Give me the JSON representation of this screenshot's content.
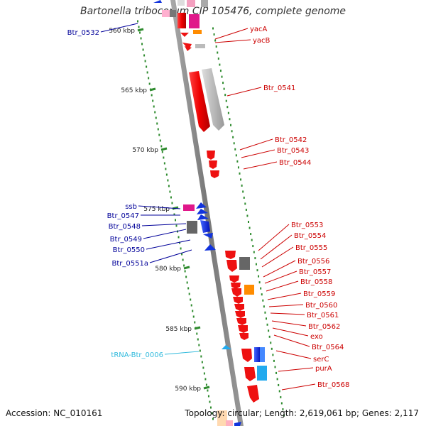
{
  "title": "Bartonella tribocorum CIP 105476, complete genome",
  "footer": {
    "accession": "Accession: NC_010161",
    "summary": "Topology: circular; Length: 2,619,061 bp; Genes: 2,117"
  },
  "colors": {
    "backbone": "#888888",
    "plus_strand": "#ee1111",
    "minus_strand": "#1133dd",
    "pseudo": "#bbbbbb",
    "dark_gene": "#666666",
    "magenta": "#e0188a",
    "orange": "#ff8c00",
    "cyan": "#22aaee",
    "ruler": "#2e8b2e",
    "label_red": "#cc0000",
    "label_blue": "#000099",
    "label_cyan": "#33bbdd"
  },
  "ruler": [
    {
      "label": "560 kbp"
    },
    {
      "label": "565 kbp"
    },
    {
      "label": "570 kbp"
    },
    {
      "label": "575 kbp"
    },
    {
      "label": "580 kbp"
    },
    {
      "label": "585 kbp"
    },
    {
      "label": "590 kbp"
    }
  ],
  "labels_right": [
    {
      "text": "yacA"
    },
    {
      "text": "yacB"
    },
    {
      "text": "Btr_0541"
    },
    {
      "text": "Btr_0542"
    },
    {
      "text": "Btr_0543"
    },
    {
      "text": "Btr_0544"
    },
    {
      "text": "Btr_0553"
    },
    {
      "text": "Btr_0554"
    },
    {
      "text": "Btr_0555"
    },
    {
      "text": "Btr_0556"
    },
    {
      "text": "Btr_0557"
    },
    {
      "text": "Btr_0558"
    },
    {
      "text": "Btr_0559"
    },
    {
      "text": "Btr_0560"
    },
    {
      "text": "Btr_0561"
    },
    {
      "text": "Btr_0562"
    },
    {
      "text": "exo"
    },
    {
      "text": "Btr_0564"
    },
    {
      "text": "serC"
    },
    {
      "text": "purA"
    },
    {
      "text": "Btr_0568"
    }
  ],
  "labels_left": [
    {
      "text": "Btr_0532",
      "kind": "blue"
    },
    {
      "text": "ssb",
      "kind": "blue"
    },
    {
      "text": "Btr_0547",
      "kind": "blue"
    },
    {
      "text": "Btr_0548",
      "kind": "blue"
    },
    {
      "text": "Btr_0549",
      "kind": "blue"
    },
    {
      "text": "Btr_0550",
      "kind": "blue"
    },
    {
      "text": "Btr_0551a",
      "kind": "blue"
    },
    {
      "text": "tRNA-Btr_0006",
      "kind": "cyan"
    }
  ]
}
